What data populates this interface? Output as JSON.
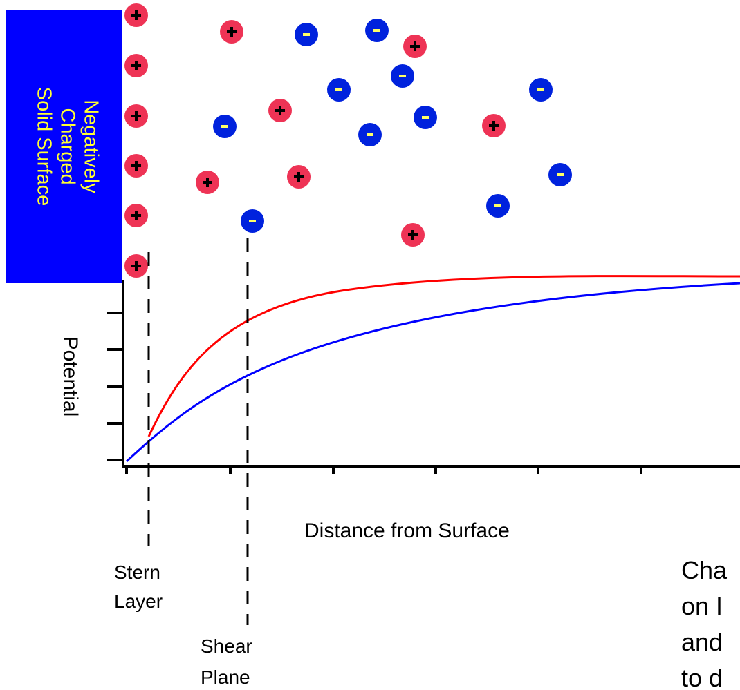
{
  "surface_label": [
    "Negatively",
    "Charged",
    "Solid Surface"
  ],
  "y_axis_label": "Potential",
  "x_axis_label": "Distance from Surface",
  "stern_label": [
    "Stern",
    "Layer"
  ],
  "shear_label": [
    "Shear",
    "Plane"
  ],
  "caption_fragments": [
    "Cha",
    "on I",
    "and",
    "to d"
  ]
}
